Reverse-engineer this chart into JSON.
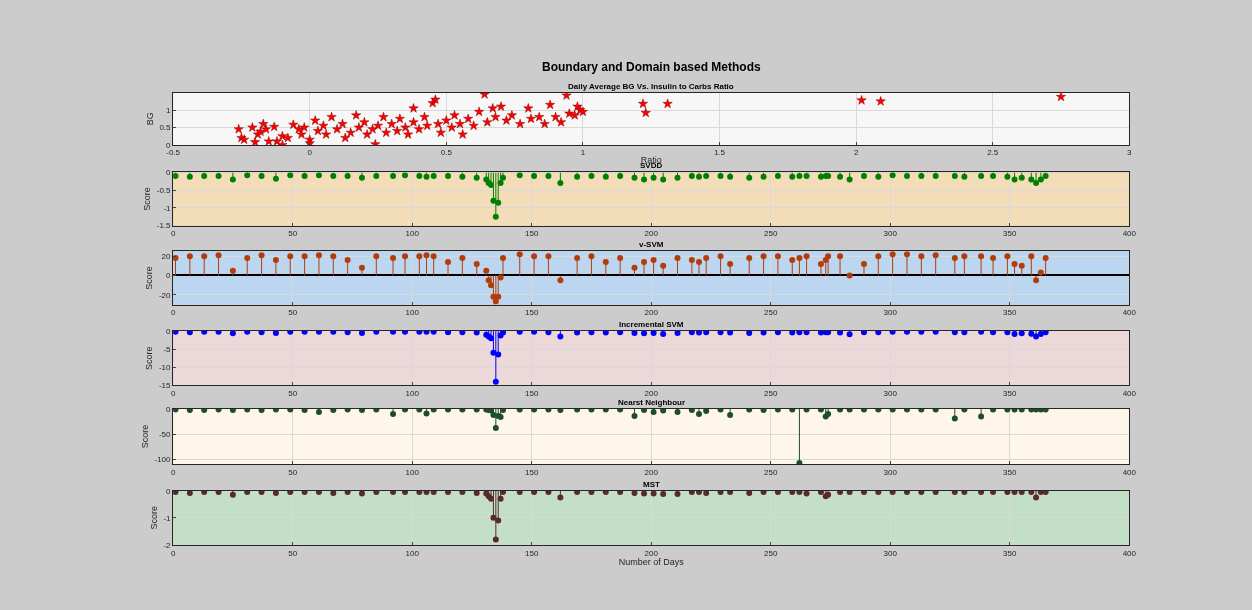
{
  "chart_data": [
    {
      "type": "scatter",
      "title": "Boundary and Domain based Methods",
      "subtitle": "Daily Average BG Vs. Insulin to Carbs Ratio",
      "xlabel": "Ratio",
      "ylabel": "BG",
      "marker": "star",
      "grid": true,
      "x": [
        -0.26,
        -0.25,
        -0.24,
        -0.21,
        -0.2,
        -0.19,
        -0.18,
        -0.17,
        -0.16,
        -0.15,
        -0.13,
        -0.12,
        -0.1,
        -0.1,
        -0.08,
        -0.06,
        -0.04,
        -0.03,
        -0.02,
        0,
        0,
        0.02,
        0.03,
        0.05,
        0.06,
        0.08,
        0.1,
        0.12,
        0.13,
        0.15,
        0.17,
        0.18,
        0.2,
        0.21,
        0.23,
        0.24,
        0.25,
        0.27,
        0.28,
        0.3,
        0.32,
        0.33,
        0.35,
        0.36,
        0.38,
        0.38,
        0.4,
        0.42,
        0.43,
        0.45,
        0.46,
        0.47,
        0.48,
        0.5,
        0.52,
        0.53,
        0.55,
        0.56,
        0.58,
        0.6,
        0.62,
        0.64,
        0.65,
        0.67,
        0.68,
        0.7,
        0.72,
        0.74,
        0.77,
        0.8,
        0.81,
        0.84,
        0.86,
        0.88,
        0.9,
        0.92,
        0.94,
        0.95,
        0.97,
        0.98,
        0.99,
        1.0,
        1.22,
        1.23,
        1.31,
        2.02,
        2.09,
        2.75
      ],
      "series": [
        {
          "color": "#ff0000",
          "values": [
            0.45,
            0.2,
            0.15,
            0.5,
            0.08,
            0.3,
            0.38,
            0.6,
            0.45,
            0.1,
            0.52,
            0.1,
            0.25,
            0.0,
            0.2,
            0.58,
            0.45,
            0.3,
            0.5,
            0.15,
            0.05,
            0.7,
            0.4,
            0.55,
            0.3,
            0.8,
            0.45,
            0.6,
            0.2,
            0.35,
            0.85,
            0.5,
            0.65,
            0.3,
            0.45,
            0.02,
            0.55,
            0.8,
            0.35,
            0.6,
            0.4,
            0.75,
            0.5,
            0.3,
            0.65,
            1.05,
            0.45,
            0.8,
            0.55,
            1.2,
            1.3,
            0.6,
            0.35,
            0.7,
            0.5,
            0.85,
            0.6,
            0.3,
            0.75,
            0.55,
            0.95,
            1.45,
            0.65,
            1.05,
            0.8,
            1.1,
            0.7,
            0.85,
            0.6,
            1.05,
            0.75,
            0.8,
            0.6,
            1.15,
            0.8,
            0.65,
            1.42,
            0.9,
            0.85,
            1.1,
            1.0,
            0.95,
            1.18,
            0.92,
            1.18,
            1.28,
            1.25,
            1.38
          ]
        }
      ],
      "xlim": [
        -0.5,
        3
      ],
      "xticks": [
        -0.5,
        0,
        0.5,
        1,
        1.5,
        2,
        2.5,
        3
      ],
      "ylim": [
        0,
        1.5
      ],
      "yticks": [
        0,
        0.5,
        1
      ]
    },
    {
      "type": "lollipop",
      "title": "SVDD",
      "ylabel": "Score",
      "marker": "circle",
      "grid": true,
      "x": [
        1,
        7,
        13,
        19,
        25,
        31,
        37,
        43,
        49,
        55,
        61,
        67,
        73,
        79,
        85,
        92,
        97,
        103,
        106,
        109,
        115,
        121,
        127,
        131,
        132,
        133,
        134,
        135,
        136,
        137,
        138,
        145,
        151,
        157,
        162,
        169,
        175,
        181,
        187,
        193,
        197,
        201,
        205,
        211,
        217,
        220,
        223,
        229,
        233,
        241,
        247,
        253,
        259,
        262,
        265,
        271,
        273,
        274,
        279,
        283,
        289,
        295,
        301,
        307,
        313,
        319,
        327,
        331,
        338,
        343,
        349,
        352,
        355,
        359,
        361,
        363,
        365
      ],
      "series": [
        {
          "color": "#008000",
          "values": [
            -0.1,
            -0.12,
            -0.1,
            -0.1,
            -0.2,
            -0.08,
            -0.1,
            -0.18,
            -0.08,
            -0.1,
            -0.08,
            -0.1,
            -0.1,
            -0.15,
            -0.1,
            -0.1,
            -0.08,
            -0.1,
            -0.12,
            -0.1,
            -0.1,
            -0.12,
            -0.15,
            -0.2,
            -0.3,
            -0.35,
            -0.8,
            -1.25,
            -0.85,
            -0.3,
            -0.15,
            -0.08,
            -0.1,
            -0.1,
            -0.3,
            -0.12,
            -0.1,
            -0.12,
            -0.1,
            -0.15,
            -0.2,
            -0.15,
            -0.2,
            -0.15,
            -0.1,
            -0.12,
            -0.1,
            -0.1,
            -0.12,
            -0.15,
            -0.12,
            -0.1,
            -0.12,
            -0.1,
            -0.1,
            -0.12,
            -0.1,
            -0.1,
            -0.12,
            -0.2,
            -0.1,
            -0.12,
            -0.08,
            -0.1,
            -0.1,
            -0.1,
            -0.1,
            -0.12,
            -0.1,
            -0.1,
            -0.12,
            -0.2,
            -0.15,
            -0.2,
            -0.3,
            -0.2,
            -0.1
          ]
        }
      ],
      "xlim": [
        0,
        400
      ],
      "xticks": [
        0,
        50,
        100,
        150,
        200,
        250,
        300,
        350,
        400
      ],
      "ylim": [
        -1.5,
        0
      ],
      "yticks": [
        -1.5,
        -1,
        -0.5,
        0
      ]
    },
    {
      "type": "lollipop",
      "title": "v-SVM",
      "ylabel": "Score",
      "marker": "circle",
      "grid": true,
      "x": [
        1,
        7,
        13,
        19,
        25,
        31,
        37,
        43,
        49,
        55,
        61,
        67,
        73,
        79,
        85,
        92,
        97,
        103,
        106,
        109,
        115,
        121,
        127,
        131,
        132,
        133,
        134,
        135,
        136,
        137,
        138,
        145,
        151,
        157,
        162,
        169,
        175,
        181,
        187,
        193,
        197,
        201,
        205,
        211,
        217,
        220,
        223,
        229,
        233,
        241,
        247,
        253,
        259,
        262,
        265,
        271,
        273,
        274,
        279,
        283,
        289,
        295,
        301,
        307,
        313,
        319,
        327,
        331,
        338,
        343,
        349,
        352,
        355,
        359,
        361,
        363,
        365
      ],
      "series": [
        {
          "color": "#b33c0a",
          "values": [
            18,
            20,
            20,
            21,
            5,
            18,
            21,
            16,
            20,
            20,
            21,
            20,
            16,
            8,
            20,
            18,
            20,
            20,
            21,
            20,
            14,
            18,
            12,
            5,
            -5,
            -10,
            -22,
            -27,
            -22,
            -2,
            18,
            22,
            20,
            20,
            -5,
            18,
            20,
            14,
            18,
            8,
            14,
            16,
            10,
            18,
            16,
            14,
            18,
            20,
            12,
            18,
            20,
            20,
            16,
            18,
            20,
            12,
            16,
            20,
            20,
            0,
            12,
            20,
            22,
            22,
            20,
            21,
            18,
            20,
            20,
            18,
            20,
            12,
            10,
            20,
            -5,
            3,
            18
          ]
        }
      ],
      "xlim": [
        0,
        400
      ],
      "xticks": [
        0,
        50,
        100,
        150,
        200,
        250,
        300,
        350,
        400
      ],
      "ylim": [
        -30,
        25
      ],
      "yticks": [
        -20,
        0,
        20
      ]
    },
    {
      "type": "lollipop",
      "title": "Incremental SVM",
      "ylabel": "Score",
      "marker": "circle",
      "grid": true,
      "x": [
        1,
        7,
        13,
        19,
        25,
        31,
        37,
        43,
        49,
        55,
        61,
        67,
        73,
        79,
        85,
        92,
        97,
        103,
        106,
        109,
        115,
        121,
        127,
        131,
        132,
        133,
        134,
        135,
        136,
        137,
        138,
        145,
        151,
        157,
        162,
        169,
        175,
        181,
        187,
        193,
        197,
        201,
        205,
        211,
        217,
        220,
        223,
        229,
        233,
        241,
        247,
        253,
        259,
        262,
        265,
        271,
        273,
        274,
        279,
        283,
        289,
        295,
        301,
        307,
        313,
        319,
        327,
        331,
        338,
        343,
        349,
        352,
        355,
        359,
        361,
        363,
        365
      ],
      "series": [
        {
          "color": "#0000ff",
          "values": [
            -0.2,
            -0.3,
            -0.2,
            -0.2,
            -0.6,
            -0.2,
            -0.3,
            -0.5,
            -0.2,
            -0.2,
            -0.2,
            -0.2,
            -0.3,
            -0.5,
            -0.2,
            -0.2,
            -0.2,
            -0.2,
            -0.2,
            -0.2,
            -0.3,
            -0.3,
            -0.4,
            -1,
            -1.5,
            -2,
            -6,
            -14,
            -6.5,
            -1.2,
            -0.4,
            -0.2,
            -0.2,
            -0.3,
            -1.5,
            -0.4,
            -0.3,
            -0.4,
            -0.3,
            -0.5,
            -0.6,
            -0.5,
            -0.8,
            -0.5,
            -0.3,
            -0.4,
            -0.3,
            -0.3,
            -0.4,
            -0.5,
            -0.4,
            -0.3,
            -0.4,
            -0.3,
            -0.3,
            -0.4,
            -0.3,
            -0.3,
            -0.4,
            -0.9,
            -0.3,
            -0.3,
            -0.2,
            -0.2,
            -0.2,
            -0.2,
            -0.3,
            -0.3,
            -0.2,
            -0.3,
            -0.3,
            -0.8,
            -0.6,
            -0.7,
            -1.5,
            -0.8,
            -0.3
          ]
        }
      ],
      "xlim": [
        0,
        400
      ],
      "xticks": [
        0,
        50,
        100,
        150,
        200,
        250,
        300,
        350,
        400
      ],
      "ylim": [
        -15,
        0
      ],
      "yticks": [
        -15,
        -10,
        -5,
        0
      ]
    },
    {
      "type": "lollipop",
      "title": "Nearst Neighbour",
      "ylabel": "Score",
      "marker": "circle",
      "grid": true,
      "x": [
        1,
        7,
        13,
        19,
        25,
        31,
        37,
        43,
        49,
        55,
        61,
        67,
        73,
        79,
        85,
        92,
        97,
        103,
        106,
        109,
        115,
        121,
        127,
        131,
        132,
        133,
        134,
        135,
        136,
        137,
        138,
        145,
        151,
        157,
        162,
        169,
        175,
        181,
        187,
        193,
        197,
        201,
        205,
        211,
        217,
        220,
        223,
        229,
        233,
        241,
        247,
        253,
        259,
        262,
        265,
        271,
        273,
        274,
        279,
        283,
        289,
        295,
        301,
        307,
        313,
        319,
        327,
        331,
        338,
        343,
        349,
        352,
        355,
        359,
        361,
        363,
        365
      ],
      "series": [
        {
          "color": "#1e4d2b",
          "values": [
            -1,
            -2,
            -2,
            -1,
            -2,
            -1,
            -2,
            -1,
            -1,
            -2,
            -6,
            -2,
            -1,
            -2,
            -1,
            -10,
            -1,
            -1,
            -9,
            -1,
            -1,
            -1,
            -1,
            -1,
            -2,
            -3,
            -12,
            -38,
            -14,
            -16,
            -2,
            -1,
            -1,
            -1,
            -2,
            -1,
            -1,
            -1,
            -1,
            -14,
            -2,
            -6,
            -3,
            -6,
            -2,
            -10,
            -4,
            -1,
            -12,
            -1,
            -2,
            -1,
            -1,
            -108,
            -1,
            -1,
            -15,
            -10,
            -1,
            -1,
            -1,
            -1,
            -1,
            -1,
            -1,
            -1,
            -19,
            -1,
            -15,
            -1,
            -1,
            -1,
            -1,
            -1,
            -1,
            -1,
            -1
          ]
        }
      ],
      "xlim": [
        0,
        400
      ],
      "xticks": [
        0,
        50,
        100,
        150,
        200,
        250,
        300,
        350,
        400
      ],
      "ylim": [
        -110,
        0
      ],
      "yticks": [
        -100,
        -50,
        0
      ]
    },
    {
      "type": "lollipop",
      "title": "MST",
      "xlabel": "Number of Days",
      "ylabel": "Score",
      "marker": "circle",
      "grid": true,
      "x": [
        1,
        7,
        13,
        19,
        25,
        31,
        37,
        43,
        49,
        55,
        61,
        67,
        73,
        79,
        85,
        92,
        97,
        103,
        106,
        109,
        115,
        121,
        127,
        131,
        132,
        133,
        134,
        135,
        136,
        137,
        138,
        145,
        151,
        157,
        162,
        169,
        175,
        181,
        187,
        193,
        197,
        201,
        205,
        211,
        217,
        220,
        223,
        229,
        233,
        241,
        247,
        253,
        259,
        262,
        265,
        271,
        273,
        274,
        279,
        283,
        289,
        295,
        301,
        307,
        313,
        319,
        327,
        331,
        338,
        343,
        349,
        352,
        355,
        359,
        361,
        363,
        365
      ],
      "series": [
        {
          "color": "#5a2a2a",
          "values": [
            -0.05,
            -0.08,
            -0.05,
            -0.05,
            -0.15,
            -0.05,
            -0.05,
            -0.08,
            -0.05,
            -0.05,
            -0.05,
            -0.08,
            -0.05,
            -0.1,
            -0.05,
            -0.05,
            -0.05,
            -0.05,
            -0.05,
            -0.05,
            -0.05,
            -0.05,
            -0.08,
            -0.1,
            -0.2,
            -0.3,
            -1,
            -1.8,
            -1.1,
            -0.3,
            -0.05,
            -0.05,
            -0.05,
            -0.05,
            -0.25,
            -0.05,
            -0.05,
            -0.05,
            -0.05,
            -0.08,
            -0.1,
            -0.1,
            -0.12,
            -0.12,
            -0.05,
            -0.05,
            -0.08,
            -0.05,
            -0.05,
            -0.08,
            -0.05,
            -0.05,
            -0.05,
            -0.05,
            -0.1,
            -0.05,
            -0.2,
            -0.15,
            -0.05,
            -0.05,
            -0.05,
            -0.05,
            -0.05,
            -0.05,
            -0.05,
            -0.05,
            -0.05,
            -0.05,
            -0.05,
            -0.05,
            -0.05,
            -0.05,
            -0.05,
            -0.05,
            -0.25,
            -0.05,
            -0.05
          ]
        }
      ],
      "xlim": [
        0,
        400
      ],
      "xticks": [
        0,
        50,
        100,
        150,
        200,
        250,
        300,
        350,
        400
      ],
      "ylim": [
        -2,
        0
      ],
      "yticks": [
        -2,
        -1,
        0
      ]
    }
  ]
}
